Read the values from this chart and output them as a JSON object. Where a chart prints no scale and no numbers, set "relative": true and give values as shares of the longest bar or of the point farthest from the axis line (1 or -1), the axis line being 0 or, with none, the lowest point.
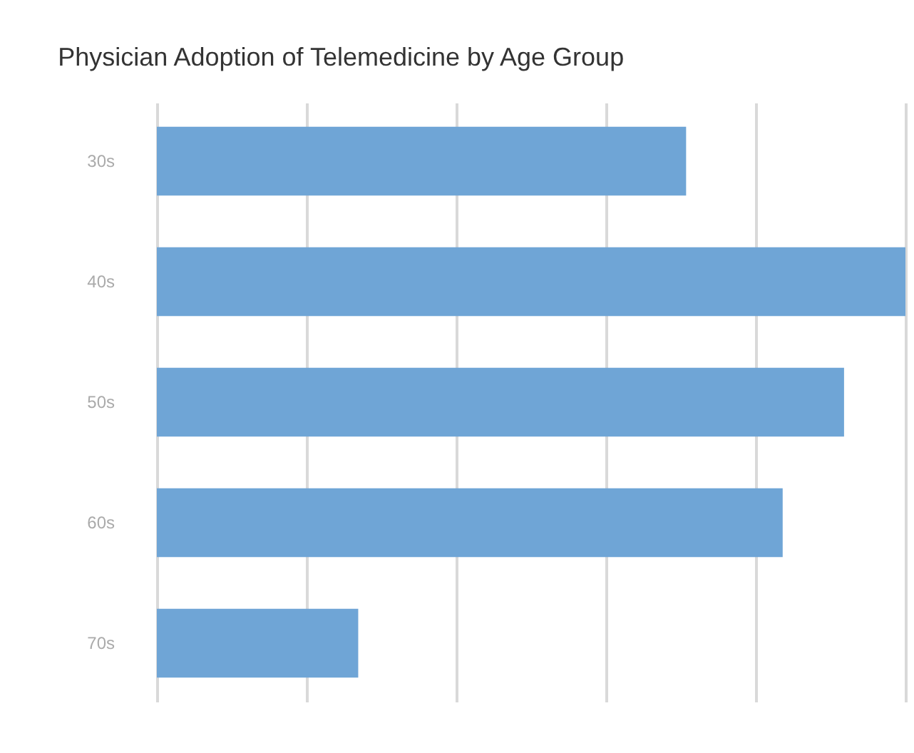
{
  "chart_data": {
    "type": "bar",
    "title": "Physician Adoption of Telemedicine by Age Group",
    "orientation": "horizontal",
    "relative": true,
    "categories": [
      "30s",
      "40s",
      "50s",
      "60s",
      "70s"
    ],
    "values": [
      0.707,
      1,
      0.918,
      0.836,
      0.269
    ],
    "color": "#6fa5d6",
    "grid": "x"
  }
}
